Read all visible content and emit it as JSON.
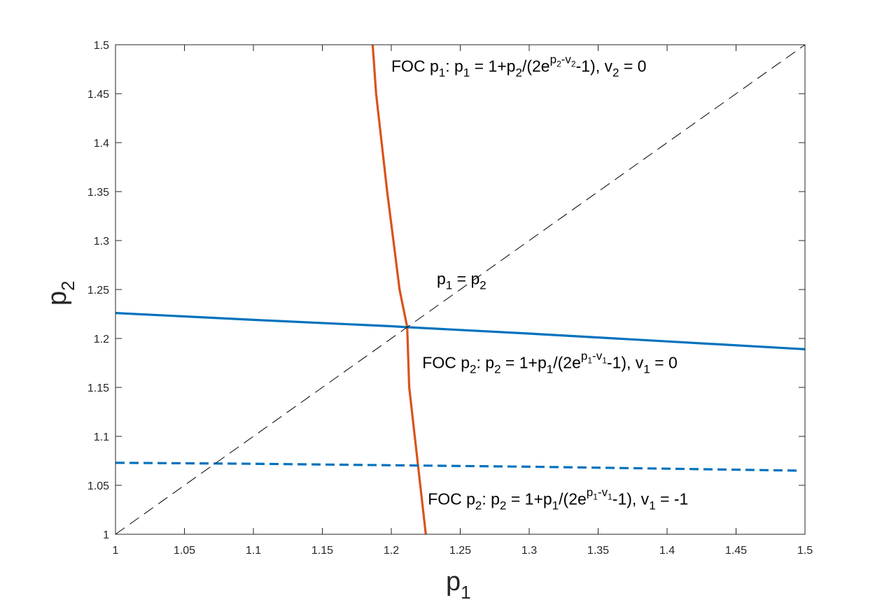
{
  "chart_data": {
    "type": "line",
    "xlabel": "p",
    "xlabel_sub": "1",
    "ylabel": "p",
    "ylabel_sub": "2",
    "xlim": [
      1,
      1.5
    ],
    "ylim": [
      1,
      1.5
    ],
    "xticks": [
      1,
      1.05,
      1.1,
      1.15,
      1.2,
      1.25,
      1.3,
      1.35,
      1.4,
      1.45,
      1.5
    ],
    "yticks": [
      1,
      1.05,
      1.1,
      1.15,
      1.2,
      1.25,
      1.3,
      1.35,
      1.4,
      1.45,
      1.5
    ],
    "xtick_labels": [
      "1",
      "1.05",
      "1.1",
      "1.15",
      "1.2",
      "1.25",
      "1.3",
      "1.35",
      "1.4",
      "1.45",
      "1.5"
    ],
    "ytick_labels": [
      "1",
      "1.05",
      "1.1",
      "1.15",
      "1.2",
      "1.25",
      "1.3",
      "1.35",
      "1.4",
      "1.45",
      "1.5"
    ],
    "grid": false,
    "series": [
      {
        "color": "#D95319",
        "style": "solid",
        "points": [
          [
            1.225,
            1.0
          ],
          [
            1.221,
            1.05
          ],
          [
            1.217,
            1.1
          ],
          [
            1.213,
            1.15
          ],
          [
            1.2115,
            1.2115
          ],
          [
            1.206,
            1.25
          ],
          [
            1.2015,
            1.3
          ],
          [
            1.197,
            1.35
          ],
          [
            1.193,
            1.4
          ],
          [
            1.189,
            1.45
          ],
          [
            1.1865,
            1.5
          ]
        ]
      },
      {
        "color": "#0072BD",
        "style": "solid",
        "points": [
          [
            1.0,
            1.226
          ],
          [
            1.1,
            1.219
          ],
          [
            1.2,
            1.2125
          ],
          [
            1.2115,
            1.2115
          ],
          [
            1.3,
            1.205
          ],
          [
            1.4,
            1.197
          ],
          [
            1.5,
            1.189
          ]
        ]
      },
      {
        "color": "#0072BD",
        "style": "dashed",
        "points": [
          [
            1.0,
            1.073
          ],
          [
            1.1,
            1.072
          ],
          [
            1.2,
            1.0705
          ],
          [
            1.3,
            1.069
          ],
          [
            1.4,
            1.067
          ],
          [
            1.495,
            1.065
          ]
        ]
      },
      {
        "color": "#000000",
        "style": "dashed-thin",
        "points": [
          [
            1.0,
            1.0
          ],
          [
            1.5,
            1.5
          ]
        ]
      }
    ],
    "annotations": {
      "foc1": {
        "t1": "FOC p",
        "s1": "1",
        "t2": ":  p",
        "s2": "1",
        "t3": " = 1+p",
        "s3": "2",
        "t4": "/(2e",
        "sup1": "p",
        "ss1": "2",
        "sup2": "-v",
        "ss2": "2",
        "t5": "-1),   v",
        "s4": "2",
        "t6": " = 0",
        "x": 1.2,
        "y": 1.4725
      },
      "diag": {
        "t1": "p",
        "s1": "1",
        "t2": " = p",
        "s2": "2",
        "x": 1.233,
        "y": 1.2555
      },
      "foc2a": {
        "t1": "FOC p",
        "s1": "2",
        "t2": ":  p",
        "s2": "2",
        "t3": " = 1+p",
        "s3": "1",
        "t4": "/(2e",
        "sup1": "p",
        "ss1": "1",
        "sup2": "-v",
        "ss2": "1",
        "t5": "-1),   v",
        "s4": "1",
        "t6": " = 0",
        "x": 1.2225,
        "y": 1.1695
      },
      "foc2b": {
        "t1": "FOC p",
        "s1": "2",
        "t2": ":  p",
        "s2": "2",
        "t3": " = 1+p",
        "s3": "1",
        "t4": "/(2e",
        "sup1": "p",
        "ss1": "1",
        "sup2": "-v",
        "ss2": "1",
        "t5": "-1),   v",
        "s4": "1",
        "t6": " = -1",
        "x": 1.2265,
        "y": 1.0305
      }
    }
  }
}
